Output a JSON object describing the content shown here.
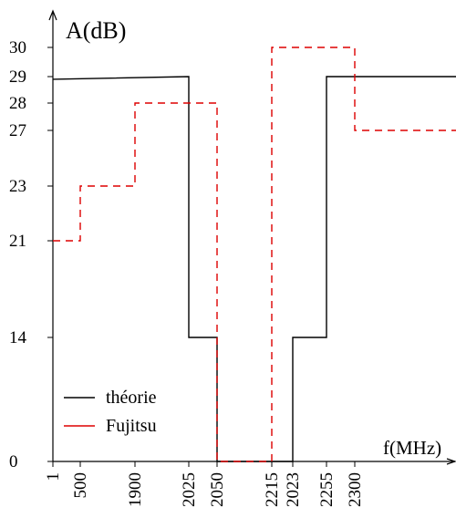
{
  "chart_data": {
    "type": "line",
    "title": "",
    "xlabel": "f(MHz)",
    "ylabel": "A(dB)",
    "x_ticks": [
      "1",
      "500",
      "1900",
      "2025",
      "2050",
      "2215",
      "2023",
      "2255",
      "2300"
    ],
    "y_ticks": [
      0,
      14,
      21,
      23,
      27,
      28,
      29,
      30
    ],
    "ylim": [
      0,
      31
    ],
    "grid": false,
    "legend_position": "bottom-left",
    "series": [
      {
        "name": "théorie",
        "style": "solid",
        "color": "#000000",
        "points": [
          [
            "1",
            28.9
          ],
          [
            "2025",
            29.0
          ],
          [
            "2025",
            14
          ],
          [
            "2050",
            14
          ],
          [
            "2050",
            0
          ],
          [
            "2023",
            0
          ],
          [
            "2023",
            14
          ],
          [
            "2255",
            14
          ],
          [
            "2255",
            29
          ],
          [
            "end",
            29
          ]
        ]
      },
      {
        "name": "Fujitsu",
        "style": "dashed",
        "color": "#dd0000",
        "points": [
          [
            "1",
            21
          ],
          [
            "500",
            21
          ],
          [
            "500",
            23
          ],
          [
            "1900",
            23
          ],
          [
            "1900",
            28
          ],
          [
            "2050",
            28
          ],
          [
            "2050",
            0
          ],
          [
            "2215",
            0
          ],
          [
            "2215",
            30
          ],
          [
            "2300",
            30
          ],
          [
            "2300",
            27
          ],
          [
            "end",
            27
          ]
        ]
      }
    ]
  }
}
